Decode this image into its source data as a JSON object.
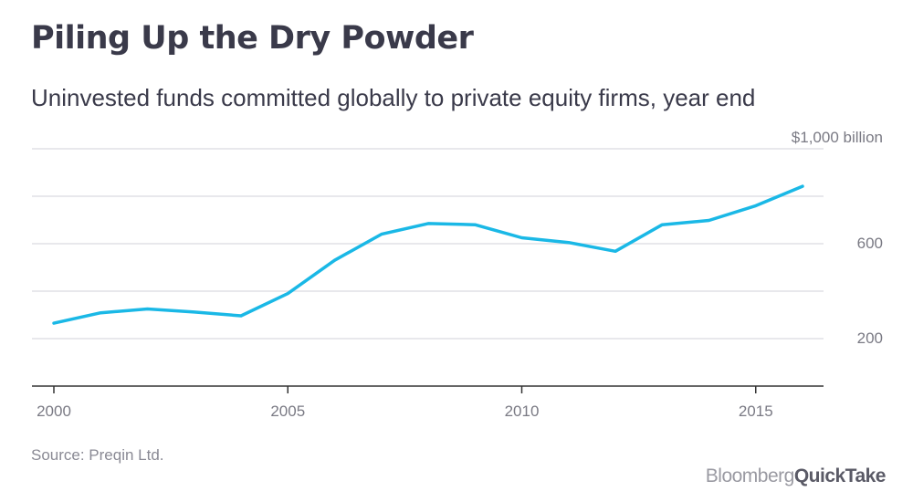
{
  "header": {
    "title": "Piling Up the Dry Powder",
    "subtitle": "Uninvested funds committed globally to private equity firms, year end"
  },
  "footer": {
    "source": "Source: Preqin Ltd.",
    "brand_part1": "Bloomberg",
    "brand_part2": "QuickTake"
  },
  "colors": {
    "line": "#1ab8e6",
    "grid": "#e0e0e6",
    "axis": "#333333",
    "text": "#3a3a4a"
  },
  "chart_data": {
    "type": "line",
    "title": "Piling Up the Dry Powder",
    "subtitle": "Uninvested funds committed globally to private equity firms, year end",
    "x": [
      2000,
      2001,
      2002,
      2003,
      2004,
      2005,
      2006,
      2007,
      2008,
      2009,
      2010,
      2011,
      2012,
      2013,
      2014,
      2015,
      2016
    ],
    "series": [
      {
        "values": [
          265,
          309,
          325,
          312,
          296,
          390,
          530,
          640,
          685,
          680,
          625,
          605,
          568,
          680,
          698,
          760,
          842
        ]
      }
    ],
    "xlim": [
      2000,
      2016
    ],
    "ylim": [
      0,
      1000
    ],
    "x_ticks": [
      2000,
      2005,
      2010,
      2015
    ],
    "x_tick_labels": [
      "2000",
      "2005",
      "2010",
      "2015"
    ],
    "y_ticks": [
      200,
      600,
      1000
    ],
    "y_tick_labels": [
      "200",
      "600",
      "$1,000 billion"
    ],
    "gridlines": [
      200,
      400,
      600,
      800,
      1000
    ],
    "grid": true,
    "legend": "none"
  }
}
